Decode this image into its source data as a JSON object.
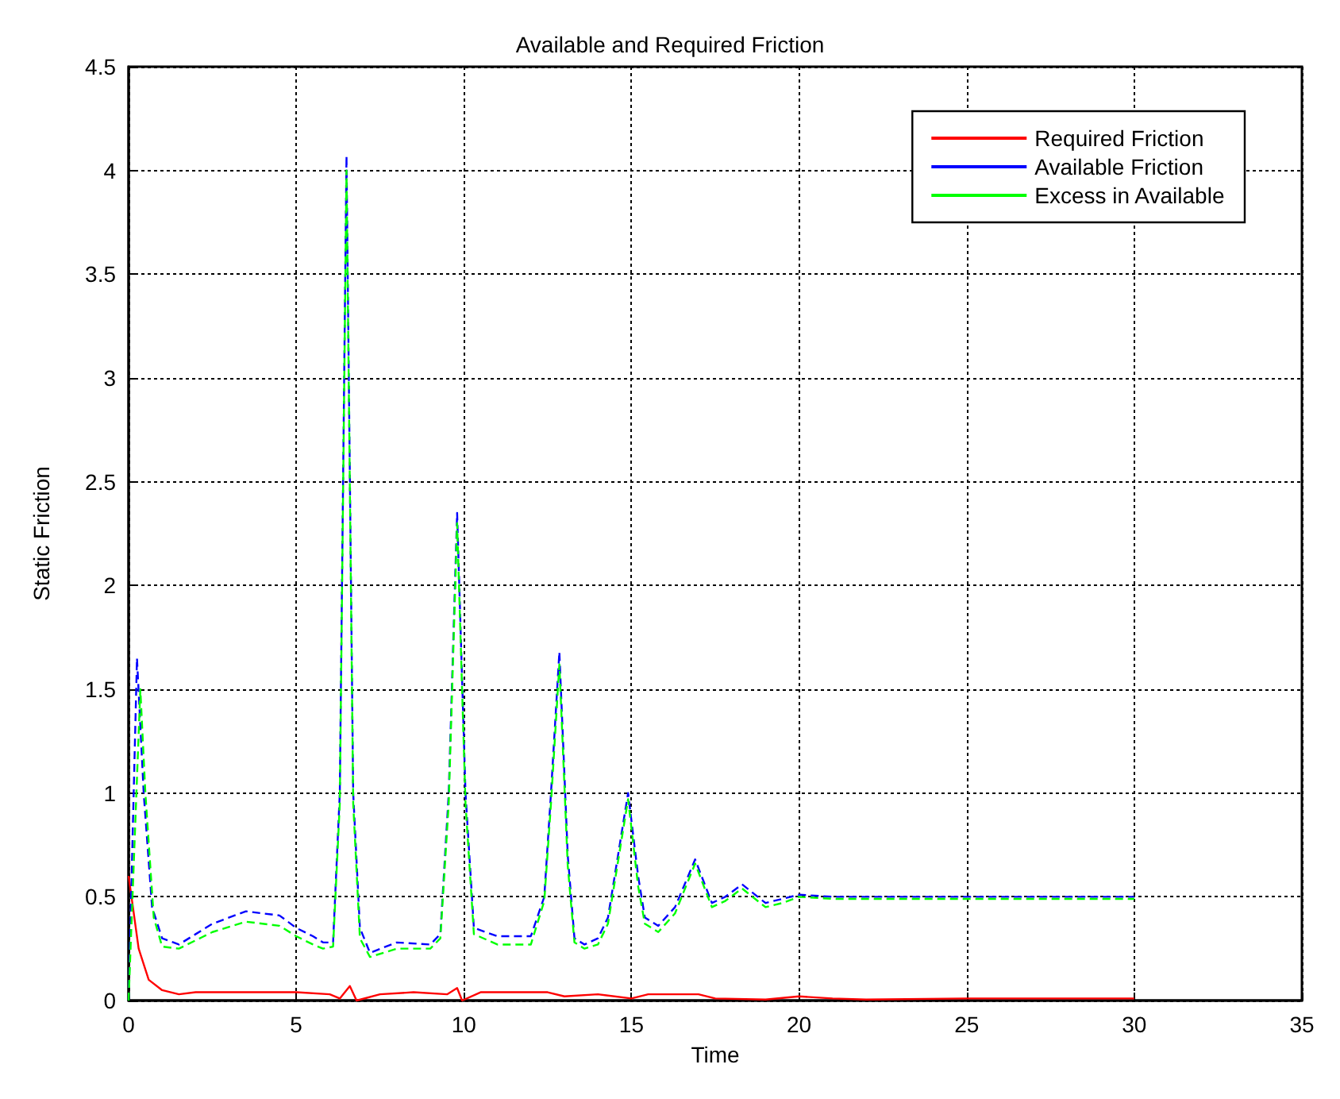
{
  "chart_data": {
    "type": "line",
    "title": "Available and Required Friction",
    "xlabel": "Time",
    "ylabel": "Static Friction",
    "xlim": [
      0,
      35
    ],
    "xticks": [
      0,
      5,
      10,
      15,
      20,
      25,
      30,
      35
    ],
    "ylim": [
      0,
      4.5
    ],
    "yticks": [
      0,
      0.5,
      1,
      1.5,
      2,
      2.5,
      3,
      3.5,
      4,
      4.5
    ],
    "grid": true,
    "legend": "top right",
    "marker": "none",
    "series": [
      {
        "name": "Required Friction",
        "color": "#ff0000",
        "line_style": "solid",
        "x": [
          0,
          0.3,
          0.6,
          1,
          1.5,
          2,
          3,
          4,
          5,
          6,
          6.3,
          6.6,
          6.8,
          7.5,
          8.5,
          9.5,
          9.8,
          9.95,
          10.5,
          11.5,
          12.5,
          13,
          14,
          15,
          15.5,
          16.5,
          17,
          17.5,
          19,
          20,
          21,
          22,
          25,
          30
        ],
        "values": [
          0.6,
          0.25,
          0.1,
          0.05,
          0.03,
          0.04,
          0.04,
          0.04,
          0.04,
          0.03,
          0.01,
          0.07,
          0,
          0.03,
          0.04,
          0.03,
          0.06,
          0,
          0.04,
          0.04,
          0.04,
          0.02,
          0.03,
          0.01,
          0.03,
          0.03,
          0.03,
          0.01,
          0.005,
          0.02,
          0.01,
          0.005,
          0.01,
          0.01
        ]
      },
      {
        "name": "Available Friction",
        "color": "#0000ff",
        "line_style": "dashed",
        "x": [
          0,
          0.25,
          0.45,
          0.7,
          1,
          1.5,
          2,
          2.5,
          3.5,
          4.5,
          5,
          5.5,
          5.8,
          6.1,
          6.3,
          6.5,
          6.7,
          6.9,
          7.2,
          8,
          9,
          9.3,
          9.55,
          9.8,
          10.05,
          10.3,
          11,
          12,
          12.4,
          12.6,
          12.85,
          13.1,
          13.3,
          13.6,
          14,
          14.3,
          14.6,
          14.9,
          15.2,
          15.4,
          15.8,
          16.3,
          16.9,
          17.4,
          17.8,
          18.3,
          19,
          19.5,
          20,
          21,
          22,
          25,
          30
        ],
        "values": [
          0,
          1.65,
          1.0,
          0.45,
          0.3,
          0.27,
          0.32,
          0.37,
          0.43,
          0.41,
          0.35,
          0.31,
          0.28,
          0.28,
          1.0,
          4.07,
          1.0,
          0.35,
          0.23,
          0.28,
          0.27,
          0.32,
          1.0,
          2.35,
          1.0,
          0.35,
          0.31,
          0.31,
          0.5,
          1.0,
          1.68,
          0.7,
          0.3,
          0.27,
          0.3,
          0.4,
          0.7,
          1.0,
          0.6,
          0.4,
          0.36,
          0.45,
          0.68,
          0.47,
          0.5,
          0.56,
          0.47,
          0.49,
          0.51,
          0.5,
          0.5,
          0.5,
          0.5
        ]
      },
      {
        "name": "Excess in Available",
        "color": "#00ff00",
        "line_style": "dashed",
        "x": [
          0,
          0.35,
          0.5,
          0.75,
          1,
          1.5,
          2,
          2.5,
          3.5,
          4.5,
          5,
          5.5,
          5.8,
          6.1,
          6.3,
          6.5,
          6.7,
          6.9,
          7.2,
          8,
          9,
          9.3,
          9.55,
          9.8,
          10.05,
          10.3,
          11,
          12,
          12.4,
          12.6,
          12.85,
          13.1,
          13.3,
          13.6,
          14,
          14.3,
          14.6,
          14.9,
          15.2,
          15.4,
          15.8,
          16.3,
          16.9,
          17.4,
          17.8,
          18.3,
          19,
          19.5,
          20,
          21,
          22,
          25,
          30
        ],
        "values": [
          0,
          1.5,
          1.0,
          0.4,
          0.26,
          0.25,
          0.29,
          0.33,
          0.38,
          0.36,
          0.31,
          0.27,
          0.25,
          0.26,
          0.95,
          4.0,
          0.95,
          0.3,
          0.21,
          0.25,
          0.25,
          0.3,
          0.95,
          2.3,
          0.95,
          0.32,
          0.27,
          0.27,
          0.48,
          0.95,
          1.62,
          0.65,
          0.28,
          0.25,
          0.27,
          0.37,
          0.67,
          0.97,
          0.55,
          0.37,
          0.33,
          0.42,
          0.66,
          0.45,
          0.48,
          0.54,
          0.45,
          0.47,
          0.5,
          0.49,
          0.49,
          0.49,
          0.49
        ]
      }
    ]
  }
}
